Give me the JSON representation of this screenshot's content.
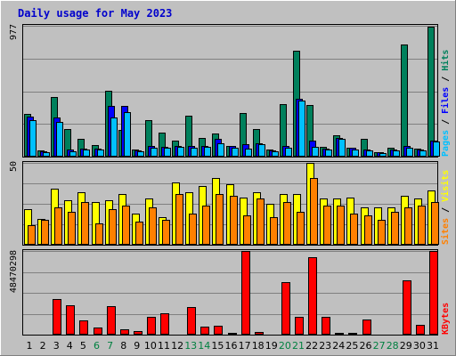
{
  "chart_data": {
    "type": "bar",
    "title": "Daily usage for May 2023",
    "categories": [
      "1",
      "2",
      "3",
      "4",
      "5",
      "6",
      "7",
      "8",
      "9",
      "10",
      "11",
      "12",
      "13",
      "14",
      "15",
      "16",
      "17",
      "18",
      "19",
      "20",
      "21",
      "22",
      "23",
      "24",
      "25",
      "26",
      "27",
      "28",
      "29",
      "30",
      "31"
    ],
    "weekend_days": [
      "6",
      "7",
      "13",
      "14",
      "20",
      "21",
      "27",
      "28"
    ],
    "colors": {
      "hits": "#00805c",
      "files": "#0000ff",
      "pages": "#00c0ff",
      "visits": "#ffff00",
      "sites": "#ff8000",
      "kbytes": "#ff0000",
      "title": "#0000cc",
      "weekend": "#008040",
      "background": "#c0c0c0"
    },
    "panels": [
      {
        "name": "hits-files-pages",
        "max_label": "977",
        "ylim": [
          0,
          977
        ],
        "side_labels": [
          {
            "text": "Pages",
            "color": "#00c0ff"
          },
          {
            "text": " / ",
            "color": "#000000"
          },
          {
            "text": "Files",
            "color": "#0000ff"
          },
          {
            "text": " / ",
            "color": "#000000"
          },
          {
            "text": "Hits",
            "color": "#00805c"
          }
        ],
        "series": [
          {
            "name": "Hits",
            "color": "#00805c",
            "values": [
              320,
              45,
              445,
              205,
              130,
              85,
              490,
              200,
              50,
              270,
              180,
              120,
              305,
              140,
              175,
              80,
              325,
              205,
              55,
              390,
              790,
              385,
              70,
              160,
              65,
              130,
              30,
              65,
              840,
              60,
              970
            ]
          },
          {
            "name": "Files",
            "color": "#0000ff",
            "values": [
              300,
              40,
              290,
              50,
              60,
              60,
              380,
              380,
              45,
              80,
              75,
              80,
              80,
              80,
              130,
              80,
              90,
              100,
              45,
              80,
              430,
              120,
              60,
              140,
              65,
              55,
              30,
              55,
              80,
              50,
              120
            ]
          },
          {
            "name": "Pages",
            "color": "#00c0ff",
            "values": [
              275,
              32,
              260,
              40,
              50,
              50,
              295,
              330,
              40,
              65,
              65,
              70,
              65,
              70,
              100,
              65,
              60,
              90,
              40,
              65,
              420,
              70,
              50,
              130,
              55,
              45,
              28,
              45,
              65,
              45,
              115
            ]
          }
        ]
      },
      {
        "name": "visits-sites",
        "max_label": "50",
        "ylim": [
          0,
          50
        ],
        "side_labels": [
          {
            "text": "Sites",
            "color": "#ff8000"
          },
          {
            "text": " / ",
            "color": "#000000"
          },
          {
            "text": "Visits",
            "color": "#ffff00"
          }
        ],
        "series": [
          {
            "name": "Visits",
            "color": "#ffff00",
            "values": [
              22,
              16,
              34,
              27,
              32,
              26,
              27,
              31,
              19,
              28,
              17,
              38,
              32,
              36,
              41,
              37,
              29,
              32,
              25,
              31,
              31,
              50,
              28,
              28,
              29,
              23,
              23,
              23,
              30,
              28,
              33
            ]
          },
          {
            "name": "Sites",
            "color": "#ff8000",
            "values": [
              12,
              15,
              23,
              20,
              26,
              13,
              22,
              24,
              14,
              23,
              15,
              31,
              19,
              24,
              31,
              30,
              18,
              28,
              17,
              26,
              20,
              41,
              24,
              24,
              19,
              18,
              15,
              20,
              23,
              24,
              26
            ]
          }
        ]
      },
      {
        "name": "kbytes",
        "max_label": "48470298",
        "ylim": [
          0,
          48470298
        ],
        "side_labels": [
          {
            "text": "KBytes",
            "color": "#ff0000"
          }
        ],
        "series": [
          {
            "name": "KBytes",
            "color": "#ff0000",
            "values": [
              600000,
              600000,
              20800000,
              17000000,
              8500000,
              4300000,
              16700000,
              3200000,
              2200000,
              10500000,
              12600000,
              500000,
              15800000,
              4700000,
              5300000,
              1100000,
              48470298,
              1600000,
              500000,
              30200000,
              10500000,
              45000000,
              10500000,
              1100000,
              1100000,
              9000000,
              500000,
              500000,
              31200000,
              5800000,
              48470298
            ]
          }
        ]
      }
    ]
  }
}
